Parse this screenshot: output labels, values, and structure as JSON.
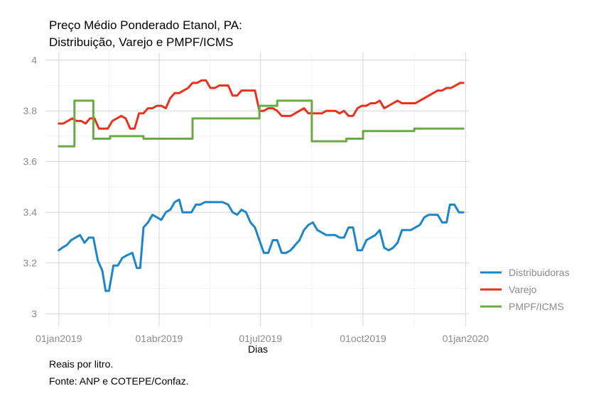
{
  "chart_data": {
    "type": "line",
    "title_line1": "Preço Médio Ponderado Etanol, PA:",
    "title_line2": "Distribuição, Varejo e PMPF/ICMS",
    "xlabel": "Dias",
    "ylabel": "",
    "ylim": [
      2.95,
      4.03
    ],
    "yticks": [
      3,
      3.2,
      3.4,
      3.6,
      3.8,
      4
    ],
    "ytick_labels": [
      "3",
      "3.2",
      "3.4",
      "3.6",
      "3.8",
      "4"
    ],
    "xticks": [
      {
        "date": "2019-01-01",
        "label": "01jan2019"
      },
      {
        "date": "2019-04-01",
        "label": "01abr2019"
      },
      {
        "date": "2019-07-01",
        "label": "01jul2019"
      },
      {
        "date": "2019-10-01",
        "label": "01oct2019"
      },
      {
        "date": "2020-01-01",
        "label": "01jan2020"
      }
    ],
    "xlim": [
      "2018-12-20",
      "2020-01-04"
    ],
    "grid": true,
    "legend_position": "right",
    "series": [
      {
        "name": "Distribuidoras",
        "color": "#1b87c9",
        "points": [
          [
            "2019-01-01",
            3.25
          ],
          [
            "2019-01-04",
            3.26
          ],
          [
            "2019-01-08",
            3.27
          ],
          [
            "2019-01-12",
            3.29
          ],
          [
            "2019-01-16",
            3.3
          ],
          [
            "2019-01-20",
            3.31
          ],
          [
            "2019-01-24",
            3.28
          ],
          [
            "2019-01-28",
            3.3
          ],
          [
            "2019-02-01",
            3.3
          ],
          [
            "2019-02-05",
            3.21
          ],
          [
            "2019-02-09",
            3.17
          ],
          [
            "2019-02-12",
            3.09
          ],
          [
            "2019-02-15",
            3.09
          ],
          [
            "2019-02-19",
            3.19
          ],
          [
            "2019-02-23",
            3.19
          ],
          [
            "2019-02-27",
            3.22
          ],
          [
            "2019-03-03",
            3.23
          ],
          [
            "2019-03-08",
            3.24
          ],
          [
            "2019-03-12",
            3.18
          ],
          [
            "2019-03-15",
            3.18
          ],
          [
            "2019-03-18",
            3.34
          ],
          [
            "2019-03-22",
            3.36
          ],
          [
            "2019-03-26",
            3.39
          ],
          [
            "2019-03-30",
            3.38
          ],
          [
            "2019-04-03",
            3.37
          ],
          [
            "2019-04-07",
            3.4
          ],
          [
            "2019-04-11",
            3.41
          ],
          [
            "2019-04-15",
            3.44
          ],
          [
            "2019-04-19",
            3.45
          ],
          [
            "2019-04-22",
            3.4
          ],
          [
            "2019-04-26",
            3.4
          ],
          [
            "2019-04-30",
            3.4
          ],
          [
            "2019-05-04",
            3.43
          ],
          [
            "2019-05-08",
            3.43
          ],
          [
            "2019-05-12",
            3.44
          ],
          [
            "2019-05-20",
            3.44
          ],
          [
            "2019-05-28",
            3.44
          ],
          [
            "2019-06-02",
            3.43
          ],
          [
            "2019-06-06",
            3.4
          ],
          [
            "2019-06-10",
            3.39
          ],
          [
            "2019-06-14",
            3.41
          ],
          [
            "2019-06-18",
            3.4
          ],
          [
            "2019-06-22",
            3.36
          ],
          [
            "2019-06-26",
            3.34
          ],
          [
            "2019-06-30",
            3.29
          ],
          [
            "2019-07-04",
            3.24
          ],
          [
            "2019-07-08",
            3.24
          ],
          [
            "2019-07-12",
            3.29
          ],
          [
            "2019-07-16",
            3.29
          ],
          [
            "2019-07-20",
            3.24
          ],
          [
            "2019-07-24",
            3.24
          ],
          [
            "2019-07-28",
            3.25
          ],
          [
            "2019-08-01",
            3.27
          ],
          [
            "2019-08-05",
            3.29
          ],
          [
            "2019-08-09",
            3.33
          ],
          [
            "2019-08-13",
            3.35
          ],
          [
            "2019-08-17",
            3.36
          ],
          [
            "2019-08-21",
            3.33
          ],
          [
            "2019-08-25",
            3.32
          ],
          [
            "2019-08-29",
            3.31
          ],
          [
            "2019-09-02",
            3.31
          ],
          [
            "2019-09-06",
            3.31
          ],
          [
            "2019-09-10",
            3.3
          ],
          [
            "2019-09-14",
            3.3
          ],
          [
            "2019-09-18",
            3.34
          ],
          [
            "2019-09-22",
            3.34
          ],
          [
            "2019-09-26",
            3.25
          ],
          [
            "2019-09-30",
            3.25
          ],
          [
            "2019-10-04",
            3.29
          ],
          [
            "2019-10-08",
            3.3
          ],
          [
            "2019-10-12",
            3.31
          ],
          [
            "2019-10-16",
            3.33
          ],
          [
            "2019-10-20",
            3.26
          ],
          [
            "2019-10-24",
            3.25
          ],
          [
            "2019-10-28",
            3.26
          ],
          [
            "2019-11-01",
            3.28
          ],
          [
            "2019-11-05",
            3.33
          ],
          [
            "2019-11-09",
            3.33
          ],
          [
            "2019-11-13",
            3.33
          ],
          [
            "2019-11-17",
            3.34
          ],
          [
            "2019-11-21",
            3.35
          ],
          [
            "2019-11-25",
            3.38
          ],
          [
            "2019-11-29",
            3.39
          ],
          [
            "2019-12-03",
            3.39
          ],
          [
            "2019-12-07",
            3.39
          ],
          [
            "2019-12-11",
            3.36
          ],
          [
            "2019-12-15",
            3.36
          ],
          [
            "2019-12-18",
            3.43
          ],
          [
            "2019-12-22",
            3.43
          ],
          [
            "2019-12-26",
            3.4
          ],
          [
            "2019-12-30",
            3.4
          ]
        ]
      },
      {
        "name": "Varejo",
        "color": "#e8321e",
        "points": [
          [
            "2019-01-01",
            3.75
          ],
          [
            "2019-01-05",
            3.75
          ],
          [
            "2019-01-09",
            3.76
          ],
          [
            "2019-01-13",
            3.77
          ],
          [
            "2019-01-17",
            3.76
          ],
          [
            "2019-01-21",
            3.76
          ],
          [
            "2019-01-25",
            3.75
          ],
          [
            "2019-01-29",
            3.77
          ],
          [
            "2019-02-02",
            3.77
          ],
          [
            "2019-02-06",
            3.73
          ],
          [
            "2019-02-10",
            3.73
          ],
          [
            "2019-02-14",
            3.73
          ],
          [
            "2019-02-18",
            3.76
          ],
          [
            "2019-02-22",
            3.77
          ],
          [
            "2019-02-26",
            3.78
          ],
          [
            "2019-03-02",
            3.77
          ],
          [
            "2019-03-06",
            3.73
          ],
          [
            "2019-03-10",
            3.73
          ],
          [
            "2019-03-14",
            3.79
          ],
          [
            "2019-03-18",
            3.79
          ],
          [
            "2019-03-22",
            3.81
          ],
          [
            "2019-03-26",
            3.81
          ],
          [
            "2019-03-30",
            3.82
          ],
          [
            "2019-04-03",
            3.82
          ],
          [
            "2019-04-07",
            3.81
          ],
          [
            "2019-04-11",
            3.85
          ],
          [
            "2019-04-15",
            3.87
          ],
          [
            "2019-04-19",
            3.87
          ],
          [
            "2019-04-23",
            3.88
          ],
          [
            "2019-04-27",
            3.89
          ],
          [
            "2019-05-01",
            3.91
          ],
          [
            "2019-05-05",
            3.91
          ],
          [
            "2019-05-09",
            3.92
          ],
          [
            "2019-05-13",
            3.92
          ],
          [
            "2019-05-17",
            3.89
          ],
          [
            "2019-05-21",
            3.89
          ],
          [
            "2019-05-25",
            3.9
          ],
          [
            "2019-05-29",
            3.9
          ],
          [
            "2019-06-02",
            3.9
          ],
          [
            "2019-06-06",
            3.86
          ],
          [
            "2019-06-10",
            3.86
          ],
          [
            "2019-06-14",
            3.88
          ],
          [
            "2019-06-18",
            3.88
          ],
          [
            "2019-06-22",
            3.88
          ],
          [
            "2019-06-26",
            3.88
          ],
          [
            "2019-06-30",
            3.8
          ],
          [
            "2019-07-04",
            3.8
          ],
          [
            "2019-07-08",
            3.81
          ],
          [
            "2019-07-12",
            3.81
          ],
          [
            "2019-07-16",
            3.8
          ],
          [
            "2019-07-20",
            3.78
          ],
          [
            "2019-07-24",
            3.78
          ],
          [
            "2019-07-28",
            3.78
          ],
          [
            "2019-08-01",
            3.79
          ],
          [
            "2019-08-05",
            3.8
          ],
          [
            "2019-08-09",
            3.81
          ],
          [
            "2019-08-13",
            3.79
          ],
          [
            "2019-08-17",
            3.79
          ],
          [
            "2019-08-21",
            3.79
          ],
          [
            "2019-08-25",
            3.79
          ],
          [
            "2019-08-29",
            3.8
          ],
          [
            "2019-09-02",
            3.8
          ],
          [
            "2019-09-06",
            3.8
          ],
          [
            "2019-09-10",
            3.79
          ],
          [
            "2019-09-14",
            3.8
          ],
          [
            "2019-09-18",
            3.78
          ],
          [
            "2019-09-22",
            3.78
          ],
          [
            "2019-09-26",
            3.81
          ],
          [
            "2019-09-30",
            3.82
          ],
          [
            "2019-10-04",
            3.82
          ],
          [
            "2019-10-08",
            3.83
          ],
          [
            "2019-10-12",
            3.83
          ],
          [
            "2019-10-16",
            3.84
          ],
          [
            "2019-10-20",
            3.81
          ],
          [
            "2019-10-24",
            3.82
          ],
          [
            "2019-10-28",
            3.83
          ],
          [
            "2019-11-01",
            3.84
          ],
          [
            "2019-11-05",
            3.83
          ],
          [
            "2019-11-09",
            3.83
          ],
          [
            "2019-11-13",
            3.83
          ],
          [
            "2019-11-17",
            3.83
          ],
          [
            "2019-11-21",
            3.84
          ],
          [
            "2019-11-25",
            3.85
          ],
          [
            "2019-11-29",
            3.86
          ],
          [
            "2019-12-03",
            3.87
          ],
          [
            "2019-12-07",
            3.88
          ],
          [
            "2019-12-11",
            3.88
          ],
          [
            "2019-12-15",
            3.89
          ],
          [
            "2019-12-19",
            3.89
          ],
          [
            "2019-12-23",
            3.9
          ],
          [
            "2019-12-27",
            3.91
          ],
          [
            "2019-12-30",
            3.91
          ]
        ]
      },
      {
        "name": "PMPF/ICMS",
        "color": "#6aaa44",
        "points": [
          [
            "2019-01-01",
            3.66
          ],
          [
            "2019-01-15",
            3.66
          ],
          [
            "2019-01-15",
            3.84
          ],
          [
            "2019-02-01",
            3.84
          ],
          [
            "2019-02-01",
            3.69
          ],
          [
            "2019-02-16",
            3.69
          ],
          [
            "2019-02-16",
            3.7
          ],
          [
            "2019-03-18",
            3.7
          ],
          [
            "2019-03-18",
            3.69
          ],
          [
            "2019-05-01",
            3.69
          ],
          [
            "2019-05-01",
            3.77
          ],
          [
            "2019-06-30",
            3.77
          ],
          [
            "2019-06-30",
            3.82
          ],
          [
            "2019-07-16",
            3.82
          ],
          [
            "2019-07-16",
            3.84
          ],
          [
            "2019-08-16",
            3.84
          ],
          [
            "2019-08-16",
            3.68
          ],
          [
            "2019-09-16",
            3.68
          ],
          [
            "2019-09-16",
            3.69
          ],
          [
            "2019-10-01",
            3.69
          ],
          [
            "2019-10-01",
            3.72
          ],
          [
            "2019-11-16",
            3.72
          ],
          [
            "2019-11-16",
            3.73
          ],
          [
            "2019-12-30",
            3.73
          ]
        ]
      }
    ],
    "caption_line1": "Reais por litro.",
    "caption_line2": "Fonte: ANP e COTEPE/Confaz."
  }
}
